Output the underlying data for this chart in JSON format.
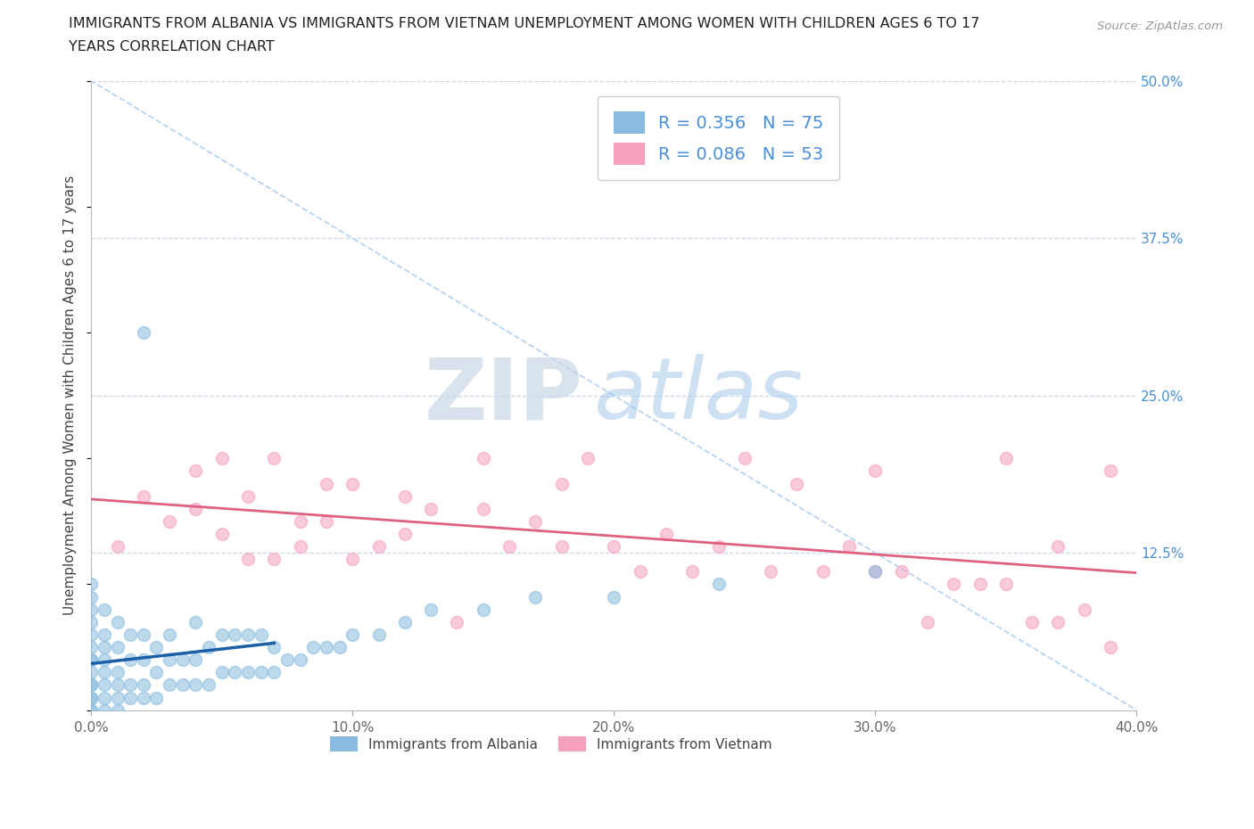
{
  "title_line1": "IMMIGRANTS FROM ALBANIA VS IMMIGRANTS FROM VIETNAM UNEMPLOYMENT AMONG WOMEN WITH CHILDREN AGES 6 TO 17",
  "title_line2": "YEARS CORRELATION CHART",
  "source": "Source: ZipAtlas.com",
  "ylabel": "Unemployment Among Women with Children Ages 6 to 17 years",
  "r_albania": 0.356,
  "n_albania": 75,
  "r_vietnam": 0.086,
  "n_vietnam": 53,
  "color_albania": "#88bbdd",
  "color_vietnam": "#f4a0be",
  "line_color_albania": "#1a5fa8",
  "line_color_vietnam": "#e06080",
  "xlim": [
    0.0,
    0.4
  ],
  "ylim": [
    0.0,
    0.5
  ],
  "xtick_labels": [
    "0.0%",
    "10.0%",
    "20.0%",
    "30.0%",
    "40.0%"
  ],
  "xtick_values": [
    0.0,
    0.1,
    0.2,
    0.3,
    0.4
  ],
  "ytick_labels_right": [
    "50.0%",
    "37.5%",
    "25.0%",
    "12.5%"
  ],
  "ytick_values_right": [
    0.5,
    0.375,
    0.25,
    0.125
  ],
  "legend_labels_bottom": [
    "Immigrants from Albania",
    "Immigrants from Vietnam"
  ],
  "background_color": "#ffffff",
  "alb_x": [
    0.0,
    0.0,
    0.0,
    0.0,
    0.0,
    0.0,
    0.0,
    0.0,
    0.0,
    0.0,
    0.0,
    0.0,
    0.0,
    0.0,
    0.0,
    0.005,
    0.005,
    0.005,
    0.005,
    0.005,
    0.005,
    0.005,
    0.005,
    0.01,
    0.01,
    0.01,
    0.01,
    0.01,
    0.01,
    0.015,
    0.015,
    0.015,
    0.015,
    0.02,
    0.02,
    0.02,
    0.02,
    0.02,
    0.025,
    0.025,
    0.025,
    0.03,
    0.03,
    0.03,
    0.035,
    0.035,
    0.04,
    0.04,
    0.04,
    0.045,
    0.045,
    0.05,
    0.05,
    0.055,
    0.055,
    0.06,
    0.06,
    0.065,
    0.065,
    0.07,
    0.07,
    0.075,
    0.08,
    0.085,
    0.09,
    0.095,
    0.1,
    0.11,
    0.12,
    0.13,
    0.15,
    0.17,
    0.2,
    0.24,
    0.3
  ],
  "alb_y": [
    0.0,
    0.0,
    0.01,
    0.01,
    0.02,
    0.02,
    0.03,
    0.04,
    0.04,
    0.05,
    0.06,
    0.07,
    0.08,
    0.09,
    0.1,
    0.0,
    0.01,
    0.02,
    0.03,
    0.04,
    0.05,
    0.06,
    0.08,
    0.0,
    0.01,
    0.02,
    0.03,
    0.05,
    0.07,
    0.01,
    0.02,
    0.04,
    0.06,
    0.01,
    0.02,
    0.04,
    0.06,
    0.3,
    0.01,
    0.03,
    0.05,
    0.02,
    0.04,
    0.06,
    0.02,
    0.04,
    0.02,
    0.04,
    0.07,
    0.02,
    0.05,
    0.03,
    0.06,
    0.03,
    0.06,
    0.03,
    0.06,
    0.03,
    0.06,
    0.03,
    0.05,
    0.04,
    0.04,
    0.05,
    0.05,
    0.05,
    0.06,
    0.06,
    0.07,
    0.08,
    0.08,
    0.09,
    0.09,
    0.1,
    0.11
  ],
  "viet_x": [
    0.01,
    0.02,
    0.03,
    0.04,
    0.04,
    0.05,
    0.05,
    0.06,
    0.06,
    0.07,
    0.07,
    0.08,
    0.08,
    0.09,
    0.09,
    0.1,
    0.1,
    0.11,
    0.12,
    0.12,
    0.13,
    0.14,
    0.15,
    0.15,
    0.16,
    0.17,
    0.18,
    0.18,
    0.19,
    0.2,
    0.21,
    0.22,
    0.23,
    0.24,
    0.25,
    0.26,
    0.27,
    0.28,
    0.29,
    0.3,
    0.3,
    0.31,
    0.32,
    0.33,
    0.34,
    0.35,
    0.35,
    0.36,
    0.37,
    0.37,
    0.38,
    0.39,
    0.39
  ],
  "viet_y": [
    0.13,
    0.17,
    0.15,
    0.16,
    0.19,
    0.14,
    0.2,
    0.12,
    0.17,
    0.12,
    0.2,
    0.13,
    0.15,
    0.18,
    0.15,
    0.12,
    0.18,
    0.13,
    0.17,
    0.14,
    0.16,
    0.07,
    0.16,
    0.2,
    0.13,
    0.15,
    0.13,
    0.18,
    0.2,
    0.13,
    0.11,
    0.14,
    0.11,
    0.13,
    0.2,
    0.11,
    0.18,
    0.11,
    0.13,
    0.11,
    0.19,
    0.11,
    0.07,
    0.1,
    0.1,
    0.1,
    0.2,
    0.07,
    0.07,
    0.13,
    0.08,
    0.05,
    0.19
  ]
}
